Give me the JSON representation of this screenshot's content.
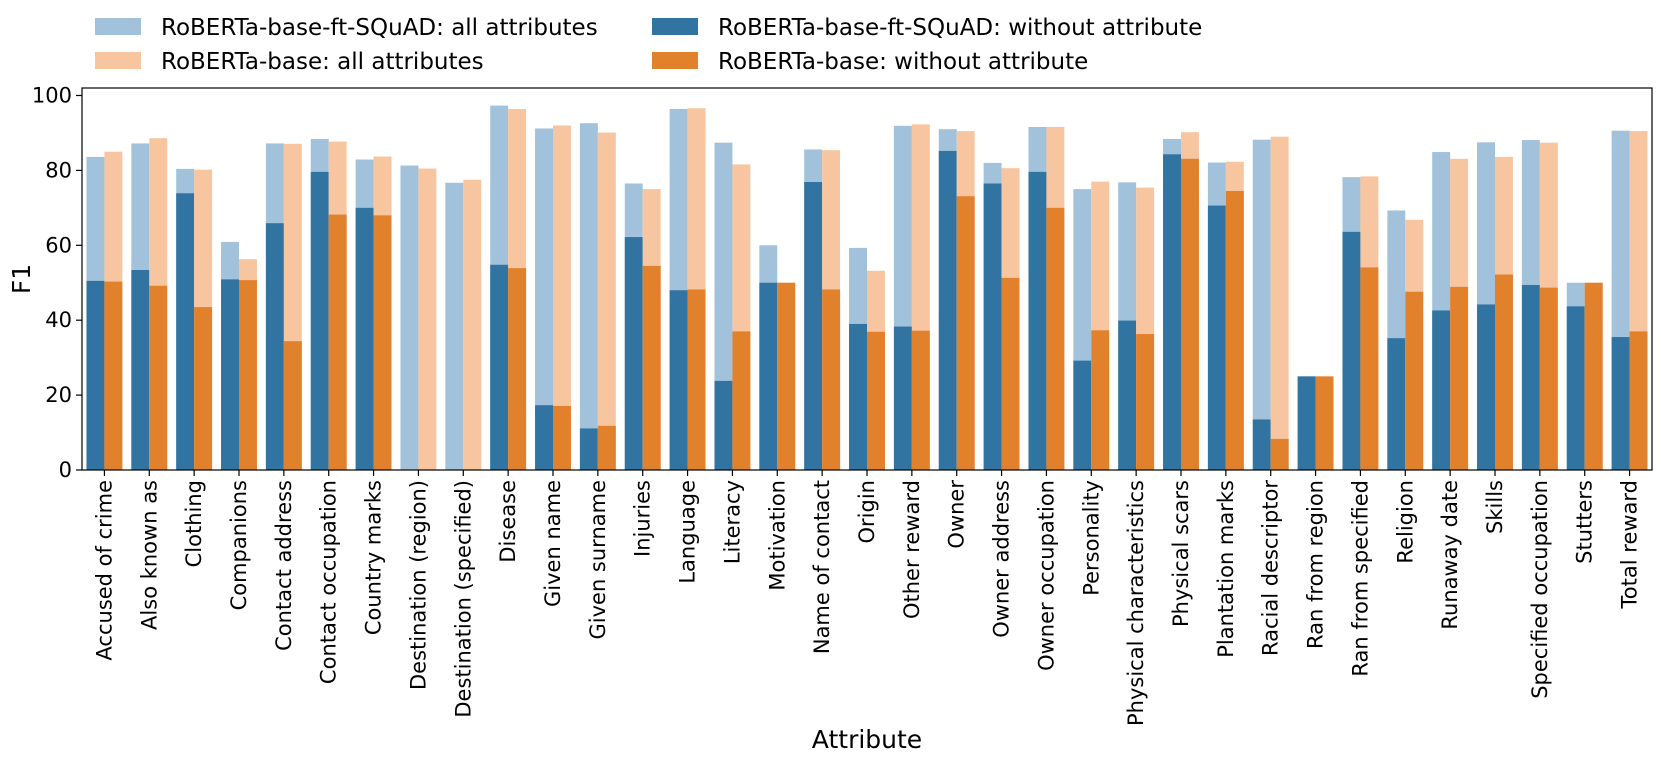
{
  "chart_data": {
    "type": "bar",
    "xlabel": "Attribute",
    "ylabel": "F1",
    "ylim": [
      0,
      102
    ],
    "yticks": [
      0,
      20,
      40,
      60,
      80,
      100
    ],
    "grid": false,
    "legend_position": "top",
    "categories": [
      "Accused of crime",
      "Also known as",
      "Clothing",
      "Companions",
      "Contact address",
      "Contact occupation",
      "Country marks",
      "Destination (region)",
      "Destination (specified)",
      "Disease",
      "Given name",
      "Given surname",
      "Injuries",
      "Language",
      "Literacy",
      "Motivation",
      "Name of contact",
      "Origin",
      "Other reward",
      "Owner",
      "Owner address",
      "Owner occupation",
      "Personality",
      "Physical characteristics",
      "Physical scars",
      "Plantation marks",
      "Racial descriptor",
      "Ran from region",
      "Ran from specified",
      "Religion",
      "Runaway date",
      "Skills",
      "Specified occupation",
      "Stutters",
      "Total reward"
    ],
    "series": [
      {
        "name": "RoBERTa-base-ft-SQuAD: all attributes",
        "color": "#a1c2da",
        "values": [
          83.6,
          87.2,
          80.4,
          60.9,
          87.2,
          88.4,
          82.9,
          81.3,
          76.7,
          97.3,
          91.2,
          92.6,
          76.5,
          96.4,
          87.4,
          60.0,
          85.6,
          59.3,
          91.9,
          91.0,
          82.0,
          91.6,
          75.0,
          76.8,
          88.4,
          82.1,
          88.2,
          25.0,
          78.2,
          69.3,
          84.9,
          87.5,
          88.1,
          50.0,
          90.6
        ]
      },
      {
        "name": "RoBERTa-base-ft-SQuAD: without attribute",
        "color": "#3274a1",
        "values": [
          50.5,
          53.4,
          73.9,
          50.9,
          65.9,
          79.6,
          70.0,
          0,
          0,
          54.8,
          17.3,
          11.1,
          62.2,
          48.0,
          23.8,
          50.0,
          76.9,
          39.0,
          38.3,
          85.2,
          76.5,
          79.6,
          29.2,
          39.9,
          84.3,
          70.6,
          13.5,
          25.0,
          63.6,
          35.2,
          42.6,
          44.2,
          49.4,
          43.7,
          35.5
        ]
      },
      {
        "name": "RoBERTa-base: all attributes",
        "color": "#f7c6a0",
        "values": [
          85.0,
          88.6,
          80.2,
          56.3,
          87.1,
          87.7,
          83.7,
          80.5,
          77.5,
          96.4,
          92.0,
          90.1,
          75.0,
          96.6,
          81.6,
          50.0,
          85.4,
          53.2,
          92.3,
          90.5,
          80.6,
          91.6,
          77.0,
          75.4,
          90.2,
          82.3,
          89.0,
          25.0,
          78.4,
          66.8,
          83.1,
          83.6,
          87.4,
          50.0,
          90.5
        ]
      },
      {
        "name": "RoBERTa-base: without attribute",
        "color": "#e1812c",
        "values": [
          50.3,
          49.2,
          43.5,
          50.7,
          34.4,
          68.2,
          68.0,
          0,
          0,
          53.9,
          17.1,
          11.8,
          54.5,
          48.2,
          37.0,
          50.0,
          48.2,
          36.9,
          37.2,
          73.1,
          51.3,
          70.0,
          37.3,
          36.3,
          83.1,
          74.5,
          8.3,
          25.0,
          54.1,
          47.6,
          48.9,
          52.2,
          48.7,
          50.0,
          37.0
        ]
      }
    ],
    "legend": [
      "RoBERTa-base-ft-SQuAD: all attributes",
      "RoBERTa-base-ft-SQuAD: without attribute",
      "RoBERTa-base: all attributes",
      "RoBERTa-base: without attribute"
    ]
  }
}
